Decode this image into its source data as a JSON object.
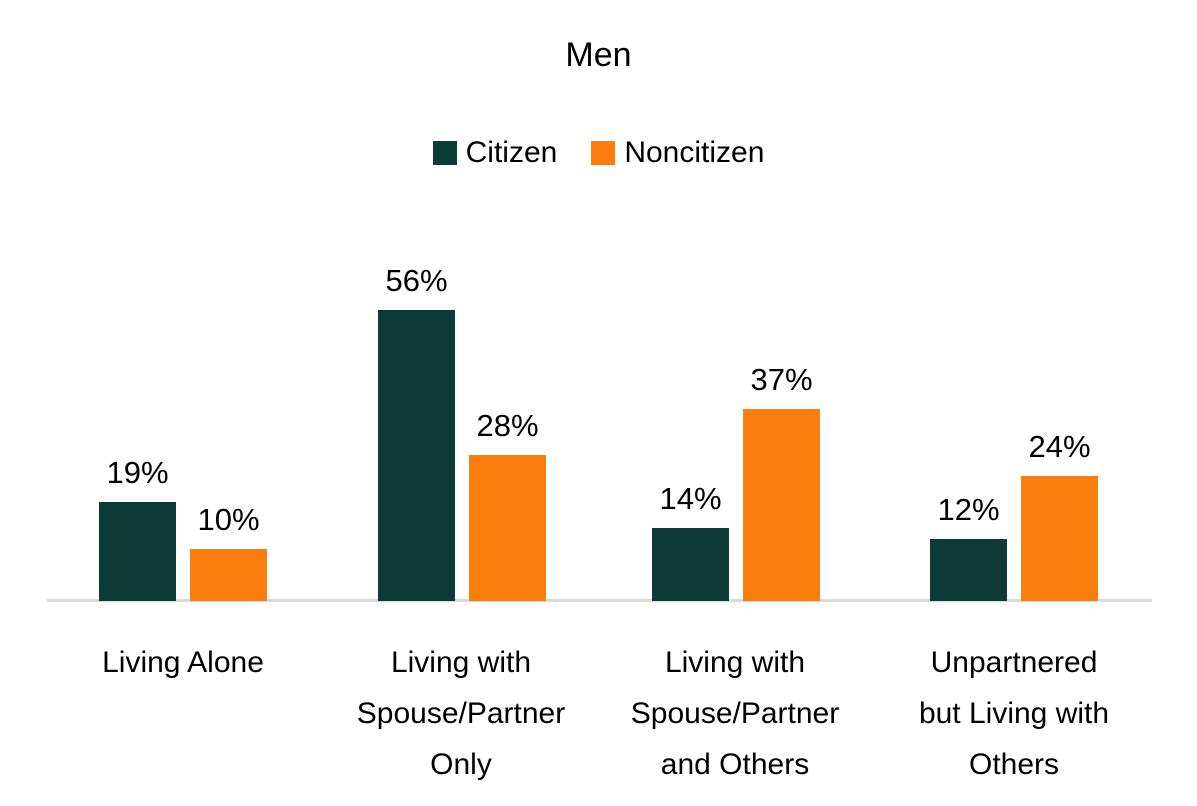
{
  "title": "Men",
  "legend": {
    "items": [
      {
        "label": "Citizen",
        "color": "#0b3a37"
      },
      {
        "label": "Noncitizen",
        "color": "#fa7d0e"
      }
    ]
  },
  "chart_data": {
    "type": "bar",
    "title": "Men",
    "categories": [
      "Living Alone",
      "Living with Spouse/Partner Only",
      "Living with Spouse/Partner and Others",
      "Unpartnered but Living with Others"
    ],
    "series": [
      {
        "name": "Citizen",
        "color": "#0b3a37",
        "values": [
          19,
          56,
          14,
          12
        ],
        "value_labels": [
          "19%",
          "56%",
          "14%",
          "12%"
        ]
      },
      {
        "name": "Noncitizen",
        "color": "#fa7d0e",
        "values": [
          10,
          28,
          37,
          24
        ],
        "value_labels": [
          "10%",
          "28%",
          "37%",
          "24%"
        ]
      }
    ],
    "unit": "%",
    "ylim": [
      0,
      60
    ],
    "grid": false,
    "legend_position": "top",
    "value_labels_shown": true,
    "baseline_color": "#d9d9d9"
  },
  "x_axis": {
    "labels": [
      {
        "lines": [
          "Living Alone",
          "",
          ""
        ]
      },
      {
        "lines": [
          "Living with",
          "Spouse/Partner",
          "Only"
        ]
      },
      {
        "lines": [
          "Living with",
          "Spouse/Partner",
          "and Others"
        ]
      },
      {
        "lines": [
          "Unpartnered",
          "but Living with",
          "Others"
        ]
      }
    ]
  }
}
